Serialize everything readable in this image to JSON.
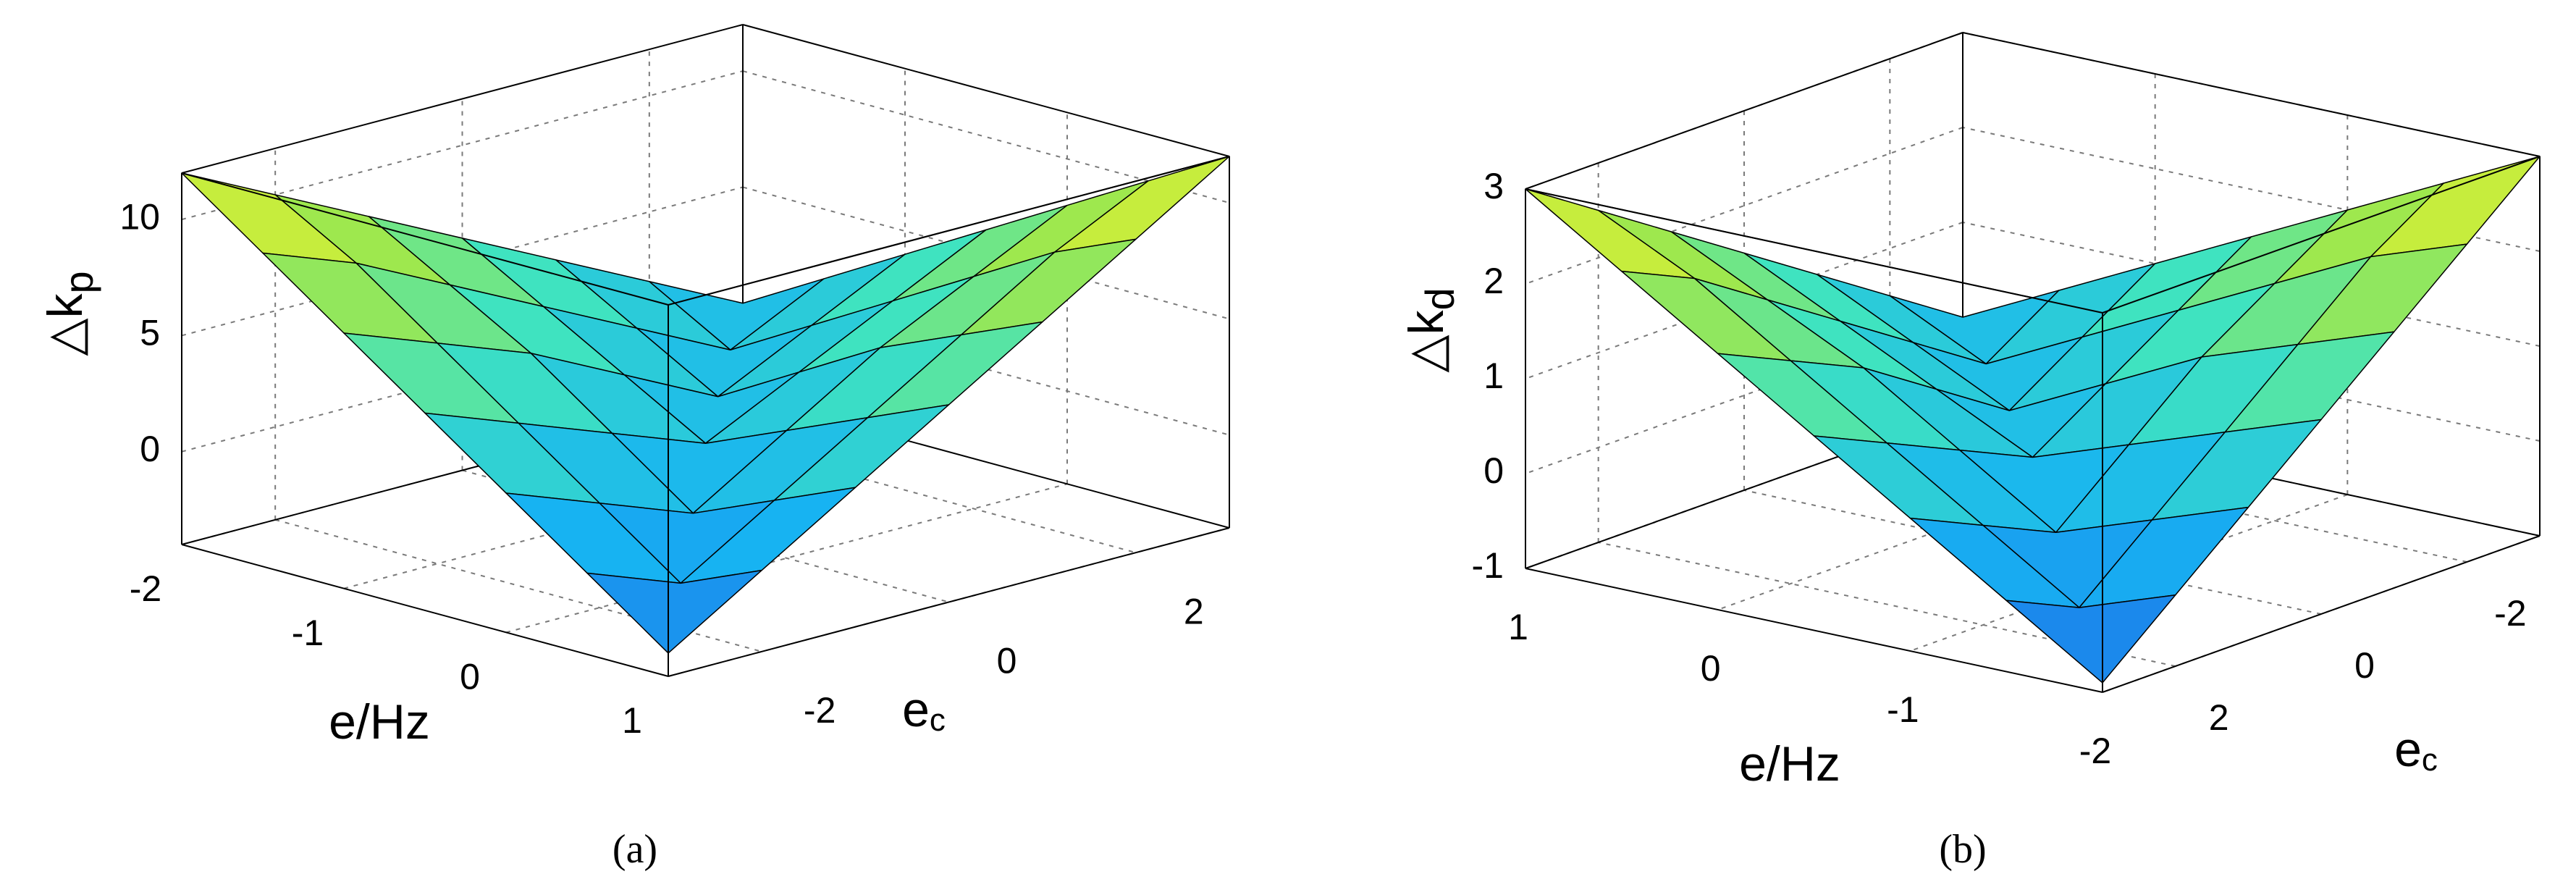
{
  "chart_data": [
    {
      "type": "surface",
      "caption": "(a)",
      "xlabel": "e/Hz",
      "ylabel": "e",
      "ylabel_sub": "c",
      "zlabel": "△k",
      "zlabel_sub": "p",
      "x": [
        -2,
        -1.5,
        -1,
        -0.5,
        0,
        0.5,
        1
      ],
      "y": [
        -3,
        -2,
        -1,
        0,
        1,
        2,
        3
      ],
      "z": [
        [
          12,
          10,
          8,
          6,
          4,
          2,
          0
        ],
        [
          9.5,
          8,
          6,
          4,
          2,
          0,
          2
        ],
        [
          7,
          5.5,
          4,
          2,
          0,
          2,
          4
        ],
        [
          4.5,
          3,
          1.5,
          0,
          2,
          4,
          6
        ],
        [
          2,
          0.5,
          -1,
          1.5,
          4,
          6,
          8
        ],
        [
          -0.5,
          -2,
          0.5,
          3,
          5.5,
          8,
          10
        ],
        [
          -3,
          -0.5,
          2,
          4.5,
          7,
          9.5,
          12
        ]
      ],
      "xlim": [
        -2,
        1
      ],
      "ylim": [
        -3,
        3
      ],
      "zlim": [
        -4,
        12
      ],
      "xticks": [
        -2,
        -1,
        0,
        1
      ],
      "yticks": [
        -2,
        0,
        2
      ],
      "zticks": [
        0,
        5,
        10
      ],
      "grid": true,
      "colormap": [
        "#1f5fe6",
        "#17b3f2",
        "#3fe3c0",
        "#9ee84e",
        "#f4f22a"
      ]
    },
    {
      "type": "surface",
      "caption": "(b)",
      "xlabel": "e/Hz",
      "ylabel": "e",
      "ylabel_sub": "c",
      "zlabel": "△k",
      "zlabel_sub": "d",
      "x": [
        -2,
        -1.5,
        -1,
        -0.5,
        0,
        0.5,
        1
      ],
      "y": [
        -3,
        -2,
        -1,
        0,
        1,
        2,
        3
      ],
      "z": [
        [
          3,
          2.35,
          1.7,
          1.05,
          0.4,
          -0.25,
          -0.9
        ],
        [
          2.5,
          2,
          1.35,
          0.7,
          0.05,
          -0.6,
          -0.25
        ],
        [
          2,
          1.5,
          1,
          0.35,
          -0.3,
          0.05,
          0.4
        ],
        [
          1.5,
          1,
          0.5,
          0,
          0.35,
          0.7,
          1.05
        ],
        [
          1,
          0.5,
          0,
          0.5,
          1,
          1.35,
          1.7
        ],
        [
          0.5,
          0,
          0.5,
          1,
          1.5,
          2,
          2.35
        ],
        [
          0,
          0.5,
          1,
          1.5,
          2,
          2.5,
          3
        ]
      ],
      "xlim": [
        -2,
        1
      ],
      "ylim": [
        -3,
        3
      ],
      "zlim": [
        -1,
        3
      ],
      "xticks": [
        -2,
        -1,
        0,
        1
      ],
      "yticks": [
        -2,
        0,
        2
      ],
      "zticks": [
        -1,
        0,
        1,
        2,
        3
      ],
      "grid": true,
      "colormap": [
        "#1f5fe6",
        "#17b3f2",
        "#3fe3c0",
        "#9ee84e",
        "#f4f22a"
      ]
    }
  ]
}
